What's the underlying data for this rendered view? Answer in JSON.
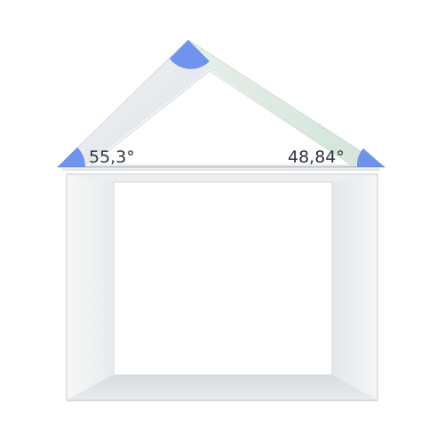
{
  "diagram": {
    "angles": [
      {
        "id": "left-base",
        "label": "55,3°",
        "color": "#5b86e5"
      },
      {
        "id": "right-base",
        "label": "48,84°",
        "color": "#5b86e5"
      },
      {
        "id": "apex",
        "label": "",
        "color": "#5b86e5"
      }
    ],
    "colors": {
      "wall_light": "#f4f5f6",
      "wall_shadow": "#d9dcdf",
      "wall_edge": "#c8cbce",
      "roof_light": "#f7f8f9",
      "roof_shadow": "#dfe2e5",
      "roof_tint": "#cfe5d8",
      "angle_fill": "#4f7ae6"
    }
  }
}
